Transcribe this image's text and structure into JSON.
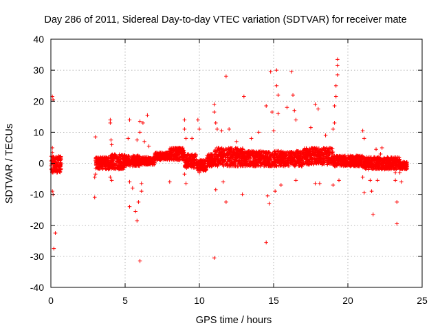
{
  "chart_data": {
    "type": "scatter",
    "title": "Day 286 of 2011, Sidereal Day-to-day VTEC variation (SDTVAR) for receiver mate",
    "xlabel": "GPS time / hours",
    "ylabel": "SDTVAR / TECUs",
    "xlim": [
      0,
      25
    ],
    "ylim": [
      -40,
      40
    ],
    "x_ticks": [
      0,
      5,
      10,
      15,
      20,
      25
    ],
    "y_ticks": [
      -40,
      -30,
      -20,
      -10,
      0,
      10,
      20,
      30,
      40
    ],
    "x_tick_labels": [
      "0",
      "5",
      "10",
      "15",
      "20",
      "25"
    ],
    "y_tick_labels": [
      "-40",
      "-30",
      "-20",
      "-10",
      "0",
      "10",
      "20",
      "30",
      "40"
    ],
    "grid": true,
    "marker": "plus",
    "color": "#ff0000",
    "series": [
      {
        "name": "SDTVAR",
        "bands": [
          {
            "x": [
              0.0,
              0.7
            ],
            "y_low": -3.0,
            "y_high": 2.5
          },
          {
            "x": [
              3.0,
              4.0
            ],
            "y_low": -2.0,
            "y_high": 2.0
          },
          {
            "x": [
              4.0,
              5.0
            ],
            "y_low": -2.0,
            "y_high": 3.0
          },
          {
            "x": [
              5.0,
              6.0
            ],
            "y_low": -1.0,
            "y_high": 2.5
          },
          {
            "x": [
              6.0,
              7.0
            ],
            "y_low": -0.5,
            "y_high": 2.0
          },
          {
            "x": [
              7.0,
              8.0
            ],
            "y_low": 1.0,
            "y_high": 3.5
          },
          {
            "x": [
              8.0,
              9.0
            ],
            "y_low": 1.0,
            "y_high": 5.0
          },
          {
            "x": [
              9.0,
              9.8
            ],
            "y_low": -1.5,
            "y_high": 3.0
          },
          {
            "x": [
              9.8,
              10.5
            ],
            "y_low": -2.5,
            "y_high": 1.0
          },
          {
            "x": [
              10.5,
              11.0
            ],
            "y_low": -1.0,
            "y_high": 3.0
          },
          {
            "x": [
              11.0,
              13.0
            ],
            "y_low": -1.0,
            "y_high": 5.0
          },
          {
            "x": [
              13.0,
              15.0
            ],
            "y_low": -1.0,
            "y_high": 4.0
          },
          {
            "x": [
              15.0,
              17.0
            ],
            "y_low": -1.0,
            "y_high": 4.0
          },
          {
            "x": [
              17.0,
              19.0
            ],
            "y_low": -0.5,
            "y_high": 5.0
          },
          {
            "x": [
              19.0,
              21.0
            ],
            "y_low": -1.0,
            "y_high": 2.5
          },
          {
            "x": [
              21.0,
              23.5
            ],
            "y_low": -2.0,
            "y_high": 2.0
          },
          {
            "x": [
              23.5,
              24.0
            ],
            "y_low": -2.0,
            "y_high": 0.5
          }
        ],
        "outliers": [
          {
            "x": 0.1,
            "y": 21.5
          },
          {
            "x": 0.15,
            "y": 20.5
          },
          {
            "x": 0.1,
            "y": 5.0
          },
          {
            "x": 0.1,
            "y": 3.5
          },
          {
            "x": 0.1,
            "y": -9.0
          },
          {
            "x": 0.15,
            "y": -10.0
          },
          {
            "x": 0.2,
            "y": -27.5
          },
          {
            "x": 0.3,
            "y": -22.5
          },
          {
            "x": 3.0,
            "y": 8.5
          },
          {
            "x": 3.0,
            "y": -3.5
          },
          {
            "x": 2.95,
            "y": -4.5
          },
          {
            "x": 2.95,
            "y": -11.0
          },
          {
            "x": 4.0,
            "y": 14.0
          },
          {
            "x": 4.0,
            "y": 13.0
          },
          {
            "x": 4.05,
            "y": 7.5
          },
          {
            "x": 4.1,
            "y": 6.0
          },
          {
            "x": 4.0,
            "y": -4.5
          },
          {
            "x": 4.1,
            "y": -5.5
          },
          {
            "x": 5.3,
            "y": 14.0
          },
          {
            "x": 5.2,
            "y": 8.0
          },
          {
            "x": 5.3,
            "y": -6.0
          },
          {
            "x": 5.3,
            "y": -14.0
          },
          {
            "x": 5.5,
            "y": -8.0
          },
          {
            "x": 5.7,
            "y": -15.5
          },
          {
            "x": 5.8,
            "y": -18.5
          },
          {
            "x": 5.9,
            "y": -12.5
          },
          {
            "x": 6.0,
            "y": 13.5
          },
          {
            "x": 6.0,
            "y": 10.0
          },
          {
            "x": 6.0,
            "y": -31.5
          },
          {
            "x": 6.1,
            "y": -6.5
          },
          {
            "x": 6.1,
            "y": -9.0
          },
          {
            "x": 5.8,
            "y": 7.5
          },
          {
            "x": 6.2,
            "y": 13.0
          },
          {
            "x": 6.5,
            "y": 15.5
          },
          {
            "x": 6.3,
            "y": 7.0
          },
          {
            "x": 6.6,
            "y": 5.5
          },
          {
            "x": 8.0,
            "y": -6.0
          },
          {
            "x": 9.0,
            "y": 14.0
          },
          {
            "x": 9.0,
            "y": 11.0
          },
          {
            "x": 9.1,
            "y": 8.0
          },
          {
            "x": 9.0,
            "y": -3.5
          },
          {
            "x": 9.1,
            "y": -6.5
          },
          {
            "x": 9.5,
            "y": 8.0
          },
          {
            "x": 9.9,
            "y": 14.0
          },
          {
            "x": 10.0,
            "y": 11.0
          },
          {
            "x": 10.0,
            "y": -3.0
          },
          {
            "x": 11.0,
            "y": 19.0
          },
          {
            "x": 11.0,
            "y": 16.5
          },
          {
            "x": 11.1,
            "y": 13.0
          },
          {
            "x": 11.2,
            "y": 11.0
          },
          {
            "x": 11.1,
            "y": -8.5
          },
          {
            "x": 11.0,
            "y": -30.5
          },
          {
            "x": 11.5,
            "y": 10.5
          },
          {
            "x": 11.6,
            "y": -6.0
          },
          {
            "x": 11.8,
            "y": 28.0
          },
          {
            "x": 11.8,
            "y": -12.5
          },
          {
            "x": 12.0,
            "y": 11.0
          },
          {
            "x": 12.5,
            "y": 7.0
          },
          {
            "x": 13.0,
            "y": 21.5
          },
          {
            "x": 12.9,
            "y": -10.0
          },
          {
            "x": 13.5,
            "y": 8.0
          },
          {
            "x": 14.0,
            "y": 10.0
          },
          {
            "x": 14.5,
            "y": 18.5
          },
          {
            "x": 14.6,
            "y": -10.5
          },
          {
            "x": 14.5,
            "y": -25.5
          },
          {
            "x": 14.7,
            "y": -13.0
          },
          {
            "x": 14.8,
            "y": 29.5
          },
          {
            "x": 14.9,
            "y": 16.5
          },
          {
            "x": 15.0,
            "y": 10.5
          },
          {
            "x": 15.2,
            "y": 30.0
          },
          {
            "x": 15.2,
            "y": 25.0
          },
          {
            "x": 15.3,
            "y": 22.0
          },
          {
            "x": 15.3,
            "y": 16.0
          },
          {
            "x": 15.1,
            "y": -9.0
          },
          {
            "x": 15.5,
            "y": -7.0
          },
          {
            "x": 15.9,
            "y": 18.0
          },
          {
            "x": 16.2,
            "y": 29.5
          },
          {
            "x": 16.3,
            "y": 22.0
          },
          {
            "x": 16.4,
            "y": 17.0
          },
          {
            "x": 16.5,
            "y": 14.0
          },
          {
            "x": 16.5,
            "y": -5.5
          },
          {
            "x": 17.5,
            "y": 11.5
          },
          {
            "x": 17.8,
            "y": 19.0
          },
          {
            "x": 18.0,
            "y": 17.5
          },
          {
            "x": 17.8,
            "y": -6.5
          },
          {
            "x": 18.1,
            "y": -6.5
          },
          {
            "x": 18.5,
            "y": 9.0
          },
          {
            "x": 19.0,
            "y": 11.0
          },
          {
            "x": 19.1,
            "y": 13.0
          },
          {
            "x": 19.1,
            "y": 18.5
          },
          {
            "x": 19.2,
            "y": 21.5
          },
          {
            "x": 19.2,
            "y": 25.0
          },
          {
            "x": 19.3,
            "y": 28.5
          },
          {
            "x": 19.3,
            "y": 31.5
          },
          {
            "x": 19.3,
            "y": 33.5
          },
          {
            "x": 19.0,
            "y": -7.0
          },
          {
            "x": 19.4,
            "y": -5.5
          },
          {
            "x": 21.0,
            "y": 10.5
          },
          {
            "x": 21.1,
            "y": 8.0
          },
          {
            "x": 21.0,
            "y": -4.5
          },
          {
            "x": 21.1,
            "y": -9.5
          },
          {
            "x": 21.5,
            "y": -5.5
          },
          {
            "x": 21.6,
            "y": -9.0
          },
          {
            "x": 21.7,
            "y": -16.5
          },
          {
            "x": 21.9,
            "y": 4.5
          },
          {
            "x": 22.0,
            "y": -5.5
          },
          {
            "x": 22.3,
            "y": 5.0
          },
          {
            "x": 22.2,
            "y": 3.0
          },
          {
            "x": 23.2,
            "y": -3.0
          },
          {
            "x": 23.2,
            "y": -5.5
          },
          {
            "x": 23.3,
            "y": -12.5
          },
          {
            "x": 23.3,
            "y": -19.5
          },
          {
            "x": 23.5,
            "y": -3.0
          },
          {
            "x": 23.6,
            "y": -6.0
          }
        ]
      }
    ]
  }
}
